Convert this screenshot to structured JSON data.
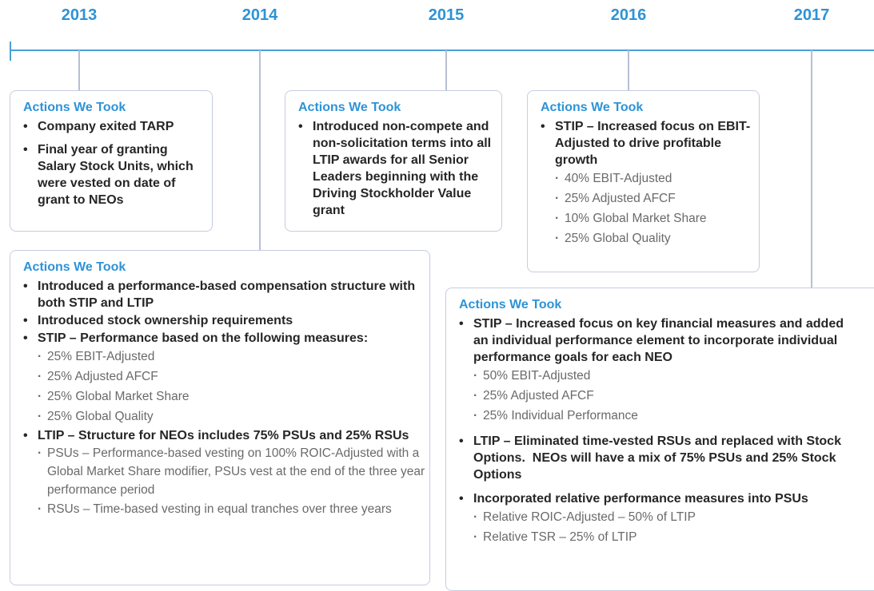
{
  "years": [
    "2013",
    "2014",
    "2015",
    "2016",
    "2017"
  ],
  "boxes": [
    {
      "heading": "Actions We Took",
      "items": [
        {
          "text": "Company exited TARP"
        },
        {
          "text": "Final year of granting Salary Stock Units, which were vested on date of grant to NEOs"
        }
      ]
    },
    {
      "heading": "Actions We Took",
      "items": [
        {
          "text": "Introduced non-compete and non-solicitation terms into all LTIP awards for all Senior Leaders beginning with the Driving Stockholder Value grant"
        }
      ]
    },
    {
      "heading": "Actions We Took",
      "items": [
        {
          "text": "STIP – Increased focus on EBIT-Adjusted to drive profitable growth",
          "subitems": [
            "40% EBIT-Adjusted",
            "25% Adjusted AFCF",
            "10% Global Market Share",
            "25% Global Quality"
          ]
        }
      ]
    },
    {
      "heading": "Actions We Took",
      "items": [
        {
          "text": "Introduced a performance-based compensation structure with both STIP and LTIP"
        },
        {
          "text": "Introduced stock ownership requirements"
        },
        {
          "text": "STIP – Performance based on the following measures:",
          "subitems": [
            "25% EBIT-Adjusted",
            "25% Adjusted AFCF",
            "25% Global Market Share",
            "25% Global Quality"
          ]
        },
        {
          "text": "LTIP – Structure for NEOs includes 75% PSUs and 25% RSUs",
          "subitems": [
            "PSUs – Performance-based vesting on 100% ROIC-Adjusted with a Global Market Share modifier, PSUs vest at the end of the three year performance period",
            "RSUs – Time-based vesting in equal tranches over three years"
          ]
        }
      ]
    },
    {
      "heading": "Actions We Took",
      "items": [
        {
          "text": "STIP – Increased focus on key financial measures and added an individual performance element to incorporate individual performance goals for each NEO",
          "subitems": [
            "50% EBIT-Adjusted",
            "25% Adjusted AFCF",
            "25% Individual Performance"
          ]
        },
        {
          "text": "LTIP – Eliminated time-vested RSUs and replaced with Stock Options.  NEOs will have a mix of 75% PSUs and 25% Stock Options"
        },
        {
          "text": "Incorporated relative performance measures into PSUs",
          "subitems": [
            "Relative ROIC-Adjusted – 50% of LTIP",
            "Relative TSR – 25% of LTIP"
          ]
        }
      ]
    }
  ]
}
